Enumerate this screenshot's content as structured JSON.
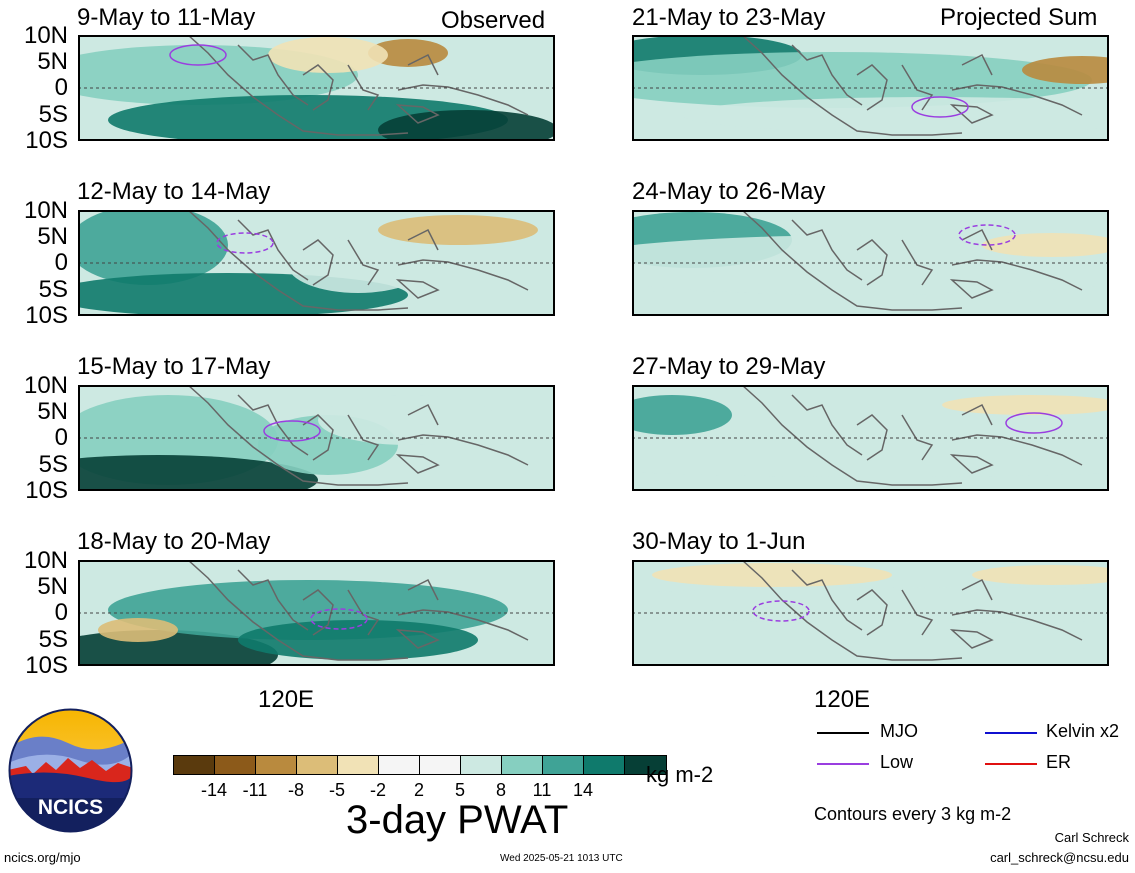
{
  "headers": {
    "observed": "Observed",
    "projected": "Projected Sum"
  },
  "panels_left": [
    {
      "title": "9-May to 11-May"
    },
    {
      "title": "12-May to 14-May"
    },
    {
      "title": "15-May to 17-May"
    },
    {
      "title": "18-May to 20-May"
    }
  ],
  "panels_right": [
    {
      "title": "21-May to 23-May"
    },
    {
      "title": "24-May to 26-May"
    },
    {
      "title": "27-May to 29-May"
    },
    {
      "title": "30-May to 1-Jun"
    }
  ],
  "lat_labels": [
    "10N",
    "5N",
    "0",
    "5S",
    "10S"
  ],
  "lon_label": "120E",
  "colorbar": {
    "colors": [
      "#5a3a0d",
      "#8c5a1a",
      "#b98a3e",
      "#dcbd78",
      "#f1e2b6",
      "#f5f5f5",
      "#f5f5f5",
      "#cde9e2",
      "#86cfc0",
      "#3fa396",
      "#0f7a6c",
      "#063f36"
    ],
    "ticks": [
      "-14",
      "-11",
      "-8",
      "-5",
      "-2",
      "2",
      "5",
      "8",
      "11",
      "14"
    ],
    "units": "kg m-2",
    "title": "3-day PWAT"
  },
  "legend": {
    "mjo": "MJO",
    "low": "Low",
    "kelvin": "Kelvin x2",
    "er": "ER",
    "colors": {
      "mjo": "#000000",
      "low": "#9a3ee0",
      "kelvin": "#1010d0",
      "er": "#e01010"
    },
    "contours_note": "Contours every 3 kg m-2"
  },
  "logo": {
    "text": "NCICS"
  },
  "footer": {
    "url": "ncics.org/mjo",
    "timestamp": "Wed 2025-05-21 1013 UTC",
    "author": "Carl Schreck",
    "email": "carl_schreck@ncsu.edu"
  }
}
